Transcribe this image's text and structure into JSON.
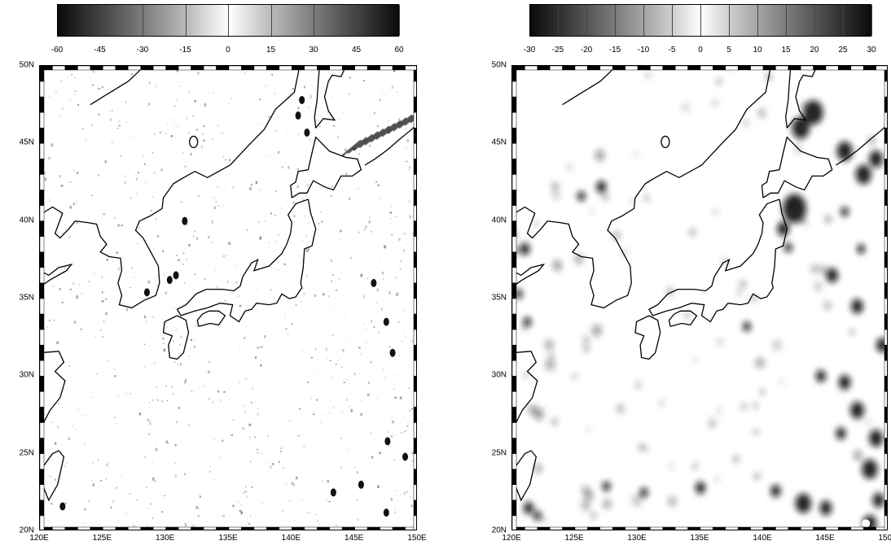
{
  "panels": [
    {
      "colorbar": {
        "ticks": [
          "-60",
          "-45",
          "-30",
          "-15",
          "0",
          "15",
          "30",
          "45",
          "60"
        ],
        "values": [
          -60,
          -45,
          -30,
          -15,
          0,
          15,
          30,
          45,
          60
        ],
        "range": [
          -60,
          60
        ]
      }
    },
    {
      "colorbar": {
        "ticks": [
          "-30",
          "-25",
          "-20",
          "-15",
          "-10",
          "-5",
          "0",
          "5",
          "10",
          "15",
          "20",
          "25",
          "30"
        ],
        "values": [
          -30,
          -25,
          -20,
          -15,
          -10,
          -5,
          0,
          5,
          10,
          15,
          20,
          25,
          30
        ],
        "range": [
          -30,
          30
        ]
      }
    }
  ],
  "lat_labels": [
    "50N",
    "45N",
    "40N",
    "35N",
    "30N",
    "25N",
    "20N"
  ],
  "lat_values": [
    50,
    45,
    40,
    35,
    30,
    25,
    20
  ],
  "lon_labels": [
    "120E",
    "125E",
    "130E",
    "135E",
    "140E",
    "145E",
    "150E"
  ],
  "lon_values": [
    120,
    125,
    130,
    135,
    140,
    145,
    150
  ],
  "extent": {
    "lon": [
      120,
      150
    ],
    "lat": [
      20,
      50
    ]
  },
  "colors": {
    "coast": "#000000",
    "field_dark": "#1a1a1a",
    "frame_dark": "#000000",
    "frame_light": "#ffffff"
  }
}
